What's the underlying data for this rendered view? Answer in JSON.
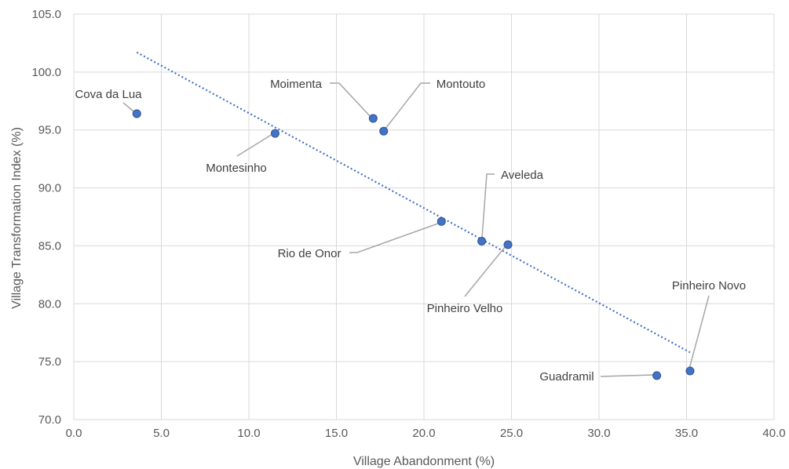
{
  "chart_data": {
    "type": "scatter",
    "title": "",
    "xlabel": "Village Abandonment (%)",
    "ylabel": "Village Transformation Index (%)",
    "xlim": [
      0,
      40
    ],
    "ylim": [
      70,
      105
    ],
    "x_ticks": [
      "0.0",
      "5.0",
      "10.0",
      "15.0",
      "20.0",
      "25.0",
      "30.0",
      "35.0",
      "40.0"
    ],
    "y_ticks": [
      "70.0",
      "75.0",
      "80.0",
      "85.0",
      "90.0",
      "95.0",
      "100.0",
      "105.0"
    ],
    "grid": true,
    "point_color": "#4472C4",
    "trendline": {
      "style": "dotted",
      "x": [
        3.6,
        35.2
      ],
      "y": [
        101.7,
        75.8
      ]
    },
    "points": [
      {
        "name": "Cova da Lua",
        "x": 3.6,
        "y": 96.4
      },
      {
        "name": "Montesinho",
        "x": 11.5,
        "y": 94.7
      },
      {
        "name": "Moimenta",
        "x": 17.1,
        "y": 96.0
      },
      {
        "name": "Montouto",
        "x": 17.7,
        "y": 94.9
      },
      {
        "name": "Rio de Onor",
        "x": 21.0,
        "y": 87.1
      },
      {
        "name": "Aveleda",
        "x": 23.3,
        "y": 85.4
      },
      {
        "name": "Pinheiro Velho",
        "x": 24.8,
        "y": 85.1
      },
      {
        "name": "Guadramil",
        "x": 33.3,
        "y": 73.8
      },
      {
        "name": "Pinheiro Novo",
        "x": 35.2,
        "y": 74.2
      }
    ]
  }
}
